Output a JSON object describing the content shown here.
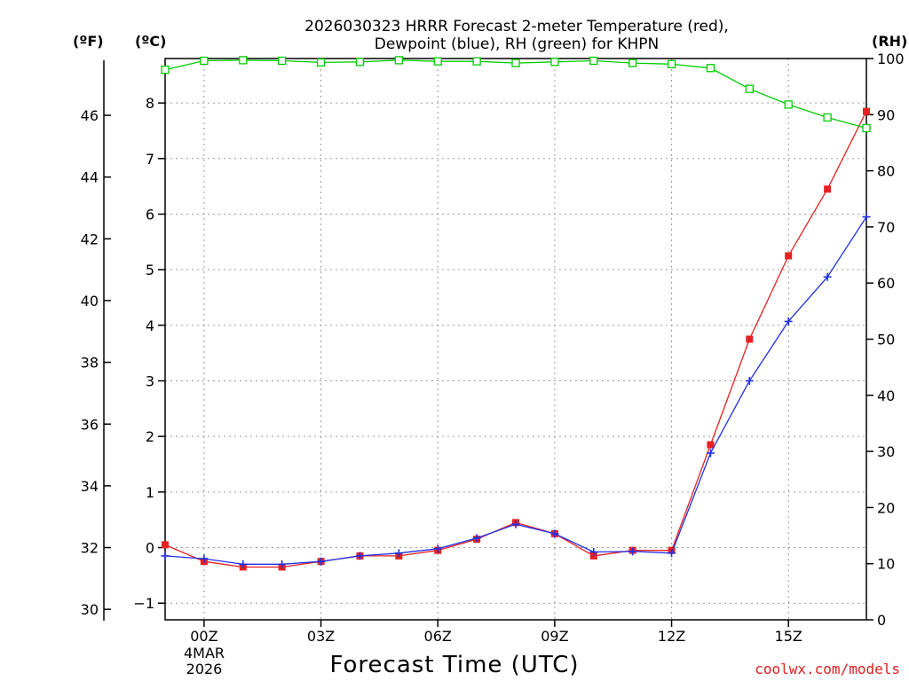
{
  "chart_data": {
    "type": "line",
    "title_line1": "2026030323 HRRR Forecast 2-meter Temperature (red),",
    "title_line2": "Dewpoint (blue), RH (green) for KHPN",
    "xlabel": "Forecast Time (UTC)",
    "date_label_1": "4MAR",
    "date_label_2": "2026",
    "left_unit_f": "(ºF)",
    "left_unit_c": "(ºC)",
    "right_unit": "(RH)",
    "credit": "coolwx.com/models",
    "colors": {
      "temperature": "#e82020",
      "dewpoint": "#2030e8",
      "rh": "#00cc00",
      "credit": "#e02020"
    },
    "x_range": [
      -1,
      17
    ],
    "x_ticks": [
      {
        "x": 0,
        "label": "00Z"
      },
      {
        "x": 3,
        "label": "03Z"
      },
      {
        "x": 6,
        "label": "06Z"
      },
      {
        "x": 9,
        "label": "09Z"
      },
      {
        "x": 12,
        "label": "12Z"
      },
      {
        "x": 15,
        "label": "15Z"
      }
    ],
    "x_hours": [
      -1,
      0,
      1,
      2,
      3,
      4,
      5,
      6,
      7,
      8,
      9,
      10,
      11,
      12,
      13,
      14,
      15,
      16,
      17
    ],
    "y_celsius": {
      "range": [
        -1.3,
        8.8
      ],
      "ticks": [
        -1,
        0,
        1,
        2,
        3,
        4,
        5,
        6,
        7,
        8
      ]
    },
    "y_fahrenheit_ticks": [
      30,
      32,
      34,
      36,
      38,
      40,
      42,
      44,
      46
    ],
    "y_rh": {
      "range": [
        0,
        100
      ],
      "ticks": [
        0,
        10,
        20,
        30,
        40,
        50,
        60,
        70,
        80,
        90,
        100
      ]
    },
    "series": [
      {
        "name": "Temperature (°C)",
        "axis": "celsius",
        "color": "#e82020",
        "marker": "filled-square",
        "values": [
          0.05,
          -0.25,
          -0.35,
          -0.35,
          -0.25,
          -0.15,
          -0.15,
          -0.05,
          0.15,
          0.45,
          0.25,
          -0.15,
          -0.05,
          -0.05,
          1.85,
          3.75,
          5.25,
          6.45,
          7.85
        ]
      },
      {
        "name": "Dewpoint (°C)",
        "axis": "celsius",
        "color": "#2030e8",
        "marker": "plus",
        "values": [
          -0.15,
          -0.2,
          -0.3,
          -0.3,
          -0.25,
          -0.15,
          -0.1,
          -0.02,
          0.17,
          0.42,
          0.25,
          -0.08,
          -0.07,
          -0.1,
          1.7,
          3.0,
          4.07,
          4.87,
          5.95
        ]
      },
      {
        "name": "RH (%)",
        "axis": "rh",
        "color": "#00cc00",
        "marker": "open-square",
        "values": [
          98.0,
          99.6,
          99.7,
          99.6,
          99.3,
          99.4,
          99.7,
          99.5,
          99.5,
          99.2,
          99.4,
          99.6,
          99.2,
          99.0,
          98.3,
          94.6,
          91.8,
          89.5,
          87.6
        ]
      }
    ]
  }
}
